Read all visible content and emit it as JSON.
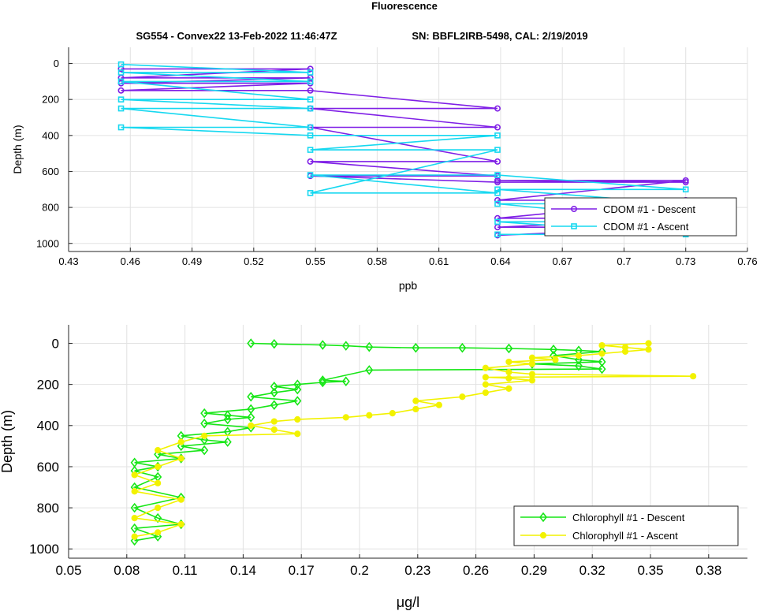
{
  "figure": {
    "title": "Fluorescence",
    "subtitle_left": "SG554 - Convex22 13-Feb-2022 11:46:47Z",
    "subtitle_right": "SN: BBFL2IRB-5498, CAL: 2/19/2019"
  },
  "chart_data": [
    {
      "type": "line",
      "xlabel": "ppb",
      "ylabel": "Depth (m)",
      "xlim": [
        0.43,
        0.76
      ],
      "ylim": [
        0,
        1000
      ],
      "y_reversed": true,
      "grid": true,
      "legend_position": "bottom-right",
      "x_ticks": [
        "0.43",
        "0.46",
        "0.49",
        "0.52",
        "0.55",
        "0.58",
        "0.61",
        "0.64",
        "0.67",
        "0.7",
        "0.73",
        "0.76"
      ],
      "y_ticks": [
        "0",
        "200",
        "400",
        "600",
        "800",
        "1000"
      ],
      "series": [
        {
          "name": "CDOM #1 - Descent",
          "color": "#7f1fe6",
          "marker": "circle",
          "x": [
            0.4555,
            0.5475,
            0.4555,
            0.5475,
            0.4555,
            0.5475,
            0.4555,
            0.5475,
            0.6385,
            0.5475,
            0.6385,
            0.5475,
            0.6385,
            0.5475,
            0.6385,
            0.5475,
            0.6385,
            0.73,
            0.6385,
            0.73,
            0.6385,
            0.73,
            0.6385,
            0.73,
            0.6385,
            0.73,
            0.6385
          ],
          "y": [
            30,
            30,
            80,
            80,
            110,
            110,
            150,
            150,
            250,
            250,
            355,
            355,
            545,
            545,
            625,
            625,
            660,
            660,
            650,
            650,
            760,
            760,
            860,
            860,
            910,
            910,
            955
          ]
        },
        {
          "name": "CDOM #1 - Ascent",
          "color": "#16d8f0",
          "marker": "square",
          "x": [
            0.6385,
            0.73,
            0.6385,
            0.73,
            0.6385,
            0.73,
            0.6385,
            0.73,
            0.6385,
            0.5475,
            0.6385,
            0.5475,
            0.6385,
            0.5475,
            0.6385,
            0.5475,
            0.4555,
            0.5475,
            0.4555,
            0.5475,
            0.4555,
            0.5475,
            0.4555,
            0.5475,
            0.4555,
            0.5475,
            0.4555
          ],
          "y": [
            950,
            950,
            880,
            880,
            780,
            780,
            700,
            700,
            620,
            620,
            720,
            720,
            480,
            480,
            400,
            400,
            355,
            355,
            250,
            250,
            200,
            200,
            100,
            100,
            50,
            50,
            5
          ]
        }
      ]
    },
    {
      "type": "line",
      "xlabel": "μg/l",
      "ylabel": "Depth (m)",
      "xlim": [
        0.05,
        0.4
      ],
      "ylim": [
        0,
        1000
      ],
      "y_reversed": true,
      "grid": true,
      "legend_position": "bottom-right",
      "x_ticks": [
        "0.05",
        "0.08",
        "0.11",
        "0.14",
        "0.17",
        "0.2",
        "0.23",
        "0.26",
        "0.29",
        "0.32",
        "0.35",
        "0.38"
      ],
      "y_ticks": [
        "0",
        "200",
        "400",
        "600",
        "800",
        "1000"
      ],
      "series": [
        {
          "name": "Chlorophyll #1 - Descent",
          "color": "#17e617",
          "marker": "diamond",
          "x": [
            0.144,
            0.156,
            0.181,
            0.193,
            0.205,
            0.229,
            0.253,
            0.277,
            0.3,
            0.313,
            0.325,
            0.3,
            0.313,
            0.325,
            0.289,
            0.313,
            0.325,
            0.205,
            0.181,
            0.193,
            0.181,
            0.168,
            0.156,
            0.168,
            0.156,
            0.144,
            0.168,
            0.156,
            0.144,
            0.12,
            0.132,
            0.144,
            0.132,
            0.12,
            0.144,
            0.132,
            0.108,
            0.12,
            0.132,
            0.108,
            0.12,
            0.096,
            0.108,
            0.084,
            0.096,
            0.084,
            0.096,
            0.084,
            0.108,
            0.084,
            0.096,
            0.108,
            0.084,
            0.096,
            0.084
          ],
          "y": [
            0,
            3,
            8,
            12,
            18,
            22,
            22,
            25,
            30,
            35,
            40,
            60,
            80,
            90,
            100,
            110,
            125,
            130,
            180,
            185,
            190,
            200,
            210,
            225,
            240,
            260,
            280,
            300,
            320,
            340,
            350,
            360,
            370,
            390,
            410,
            430,
            450,
            470,
            480,
            500,
            520,
            540,
            560,
            580,
            600,
            620,
            650,
            700,
            750,
            800,
            850,
            880,
            900,
            940,
            960
          ]
        },
        {
          "name": "Chlorophyll #1 - Ascent",
          "color": "#f2f200",
          "marker": "circle",
          "x": [
            0.084,
            0.096,
            0.108,
            0.084,
            0.096,
            0.108,
            0.084,
            0.096,
            0.084,
            0.096,
            0.108,
            0.096,
            0.108,
            0.12,
            0.168,
            0.156,
            0.144,
            0.156,
            0.168,
            0.193,
            0.205,
            0.217,
            0.229,
            0.241,
            0.229,
            0.253,
            0.265,
            0.277,
            0.265,
            0.289,
            0.277,
            0.265,
            0.372,
            0.289,
            0.277,
            0.265,
            0.289,
            0.277,
            0.301,
            0.289,
            0.313,
            0.325,
            0.337,
            0.349,
            0.337,
            0.325,
            0.349
          ],
          "y": [
            940,
            920,
            880,
            850,
            800,
            760,
            720,
            680,
            640,
            600,
            560,
            520,
            480,
            450,
            440,
            420,
            400,
            380,
            370,
            360,
            350,
            340,
            320,
            300,
            280,
            260,
            240,
            220,
            200,
            180,
            170,
            165,
            160,
            150,
            140,
            120,
            100,
            90,
            80,
            70,
            60,
            50,
            40,
            30,
            20,
            10,
            0
          ]
        }
      ]
    }
  ]
}
